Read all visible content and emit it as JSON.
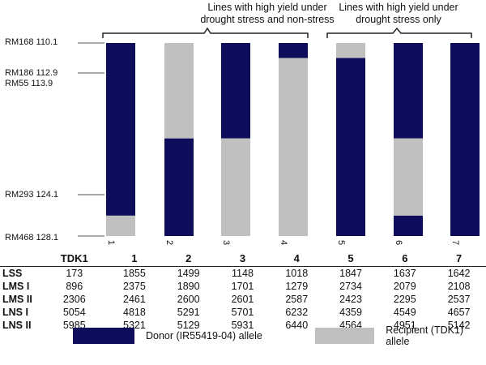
{
  "colors": {
    "donor": "#0d0d5c",
    "recipient": "#c0c0c0"
  },
  "groups": [
    {
      "label_line1": "Lines with high yield under",
      "label_line2": "drought stress and non-stress"
    },
    {
      "label_line1": "Lines with high yield under",
      "label_line2": "drought stress only"
    }
  ],
  "markers": [
    {
      "label": "RM168 110.1"
    },
    {
      "label": "RM186 112.9"
    },
    {
      "label": "RM55 113.9"
    },
    {
      "label": "RM293 124.1"
    },
    {
      "label": "RM468 128.1"
    }
  ],
  "chart_data": {
    "type": "graphical-genotype",
    "positions_cM": [
      110.1,
      112.9,
      113.9,
      124.1,
      128.1
    ],
    "range_cM": [
      110.1,
      128.1
    ],
    "lines": [
      {
        "label": "1",
        "segments": [
          {
            "allele": "donor",
            "from": 110.1,
            "to": 126.2
          },
          {
            "allele": "recipient",
            "from": 126.2,
            "to": 128.1
          }
        ]
      },
      {
        "label": "2",
        "segments": [
          {
            "allele": "recipient",
            "from": 110.1,
            "to": 119.0
          },
          {
            "allele": "donor",
            "from": 119.0,
            "to": 128.1
          }
        ]
      },
      {
        "label": "3",
        "segments": [
          {
            "allele": "donor",
            "from": 110.1,
            "to": 119.0
          },
          {
            "allele": "recipient",
            "from": 119.0,
            "to": 128.1
          }
        ]
      },
      {
        "label": "4",
        "segments": [
          {
            "allele": "donor",
            "from": 110.1,
            "to": 111.5
          },
          {
            "allele": "recipient",
            "from": 111.5,
            "to": 128.1
          }
        ]
      },
      {
        "label": "5",
        "segments": [
          {
            "allele": "recipient",
            "from": 110.1,
            "to": 111.5
          },
          {
            "allele": "donor",
            "from": 111.5,
            "to": 128.1
          }
        ]
      },
      {
        "label": "6",
        "segments": [
          {
            "allele": "donor",
            "from": 110.1,
            "to": 119.0
          },
          {
            "allele": "recipient",
            "from": 119.0,
            "to": 126.2
          },
          {
            "allele": "donor",
            "from": 126.2,
            "to": 128.1
          }
        ]
      },
      {
        "label": "7",
        "segments": [
          {
            "allele": "donor",
            "from": 110.1,
            "to": 128.1
          }
        ]
      }
    ]
  },
  "table": {
    "columns": [
      "",
      "TDK1",
      "1",
      "2",
      "3",
      "4",
      "5",
      "6",
      "7"
    ],
    "rows": [
      {
        "label": "LSS",
        "values": [
          "173",
          "1855",
          "1499",
          "1148",
          "1018",
          "1847",
          "1637",
          "1642"
        ]
      },
      {
        "label": "LMS I",
        "values": [
          "896",
          "2375",
          "1890",
          "1701",
          "1279",
          "2734",
          "2079",
          "2108"
        ]
      },
      {
        "label": "LMS II",
        "values": [
          "2306",
          "2461",
          "2600",
          "2601",
          "2587",
          "2423",
          "2295",
          "2537"
        ]
      },
      {
        "label": "LNS I",
        "values": [
          "5054",
          "4818",
          "5291",
          "5701",
          "6232",
          "4359",
          "4549",
          "4657"
        ]
      },
      {
        "label": "LNS II",
        "values": [
          "5985",
          "5321",
          "5129",
          "5931",
          "6440",
          "4564",
          "4951",
          "5142"
        ]
      }
    ]
  },
  "legend": {
    "donor_label": "Donor (IR55419-04) allele",
    "recipient_label": "Recipient (TDK1) allele"
  }
}
